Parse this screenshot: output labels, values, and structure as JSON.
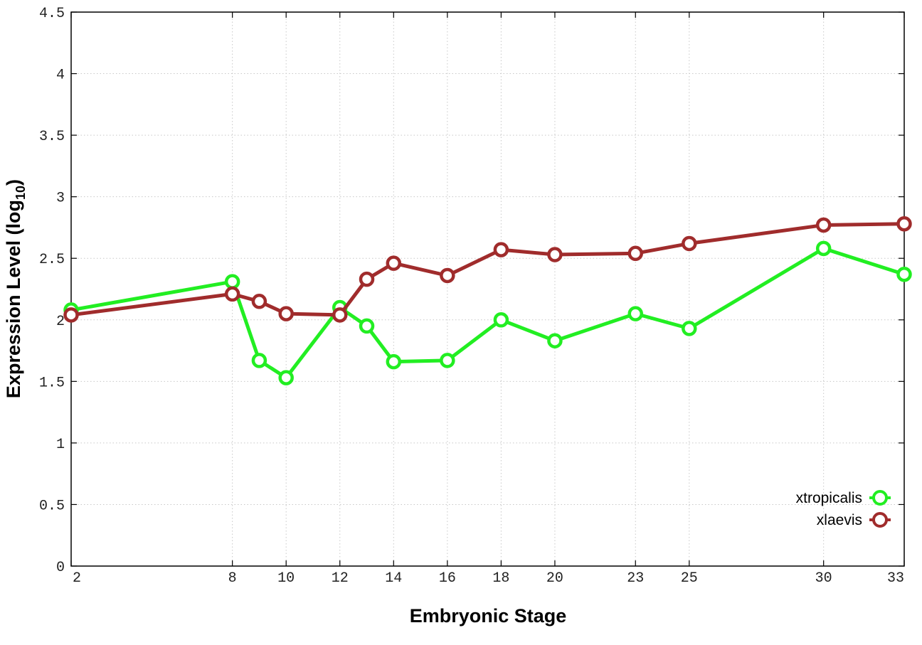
{
  "chart_data": {
    "type": "line",
    "title": "",
    "xlabel": "Embryonic Stage",
    "ylabel_main": "Expression Level (log",
    "ylabel_sub": "10",
    "ylabel_close": ")",
    "xlim": [
      2,
      33
    ],
    "ylim": [
      0,
      4.5
    ],
    "x_ticks": [
      2,
      8,
      10,
      12,
      14,
      16,
      18,
      20,
      23,
      25,
      30,
      33
    ],
    "y_ticks": [
      0,
      0.5,
      1,
      1.5,
      2,
      2.5,
      3,
      3.5,
      4,
      4.5
    ],
    "y_tick_labels": [
      "0",
      "0.5",
      "1",
      "1.5",
      "2",
      "2.5",
      "3",
      "3.5",
      "4",
      "4.5"
    ],
    "grid": true,
    "legend_position": "bottom-right",
    "series": [
      {
        "name": "xtropicalis",
        "color": "#22ee22",
        "x": [
          2,
          8,
          9,
          10,
          12,
          13,
          14,
          16,
          18,
          20,
          23,
          25,
          30,
          33
        ],
        "y": [
          2.08,
          2.31,
          1.67,
          1.53,
          2.1,
          1.95,
          1.66,
          1.67,
          2.0,
          1.83,
          2.05,
          1.93,
          2.58,
          2.37
        ]
      },
      {
        "name": "xlaevis",
        "color": "#a02c2c",
        "x": [
          2,
          8,
          9,
          10,
          12,
          13,
          14,
          16,
          18,
          20,
          23,
          25,
          30,
          33
        ],
        "y": [
          2.04,
          2.21,
          2.15,
          2.05,
          2.04,
          2.33,
          2.46,
          2.36,
          2.57,
          2.53,
          2.54,
          2.62,
          2.77,
          2.78
        ]
      }
    ]
  }
}
